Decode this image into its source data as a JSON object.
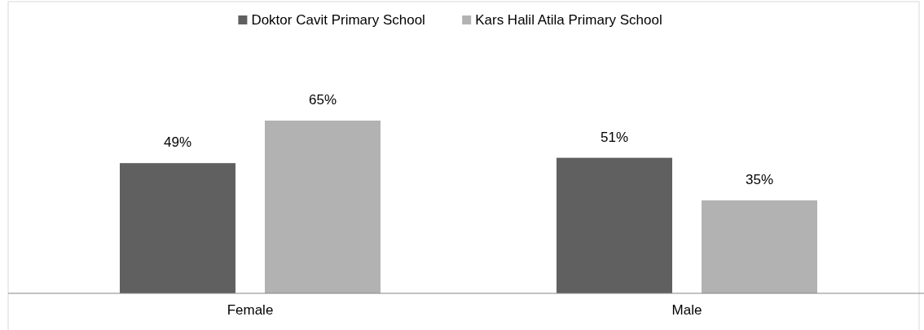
{
  "chart_data": {
    "type": "bar",
    "categories": [
      "Female",
      "Male"
    ],
    "series": [
      {
        "name": "Doktor Cavit Primary School",
        "color": "#606060",
        "values": [
          49,
          51
        ],
        "value_labels": [
          "49%",
          "51%"
        ]
      },
      {
        "name": "Kars Halil Atila Primary School",
        "color": "#b2b2b2",
        "values": [
          65,
          35
        ],
        "value_labels": [
          "65%",
          "35%"
        ]
      }
    ],
    "legend": "top"
  }
}
